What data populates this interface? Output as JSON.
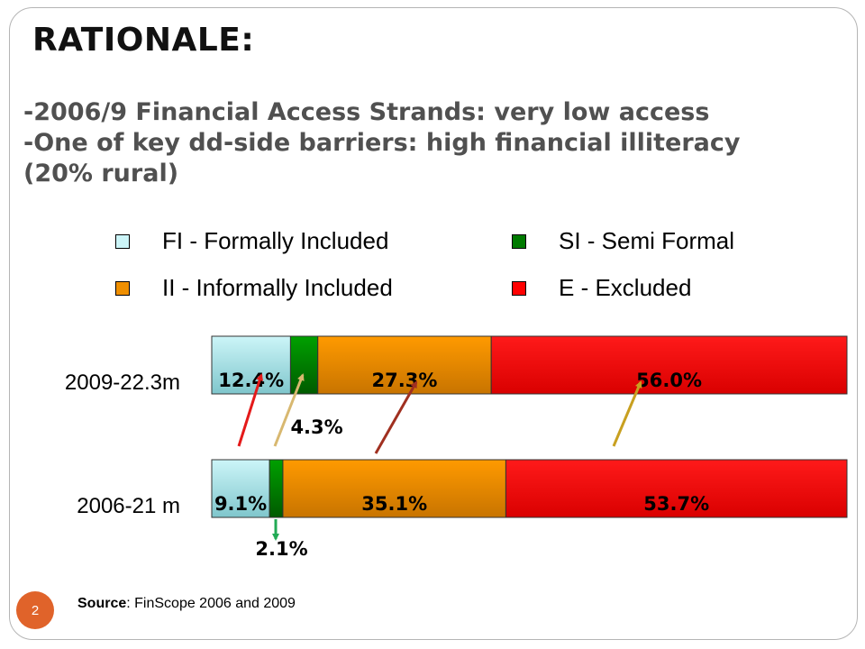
{
  "slide": {
    "title": "RATIONALE:",
    "bullets": [
      "-2006/9 Financial Access Strands: very low access",
      "-One of key dd-side barriers: high financial illiteracy",
      "(20% rural)"
    ],
    "source_label": "Source",
    "source_text": ": FinScope 2006 and 2009",
    "page_number": "2"
  },
  "colors": {
    "fi": "#ccf5f8",
    "si": "#007a00",
    "ii": "#ef8f00",
    "e": "#ff0000",
    "arrow_red": "#e41a1a",
    "arrow_tan": "#d8b870",
    "arrow_brown": "#a03020",
    "arrow_gold": "#c8a020",
    "arrow_green": "#22aa55"
  },
  "chart_data": {
    "type": "bar",
    "orientation": "horizontal",
    "stacked": true,
    "xlim": [
      0,
      100
    ],
    "categories": [
      "2009-22.3m",
      "2006-21 m"
    ],
    "legend": {
      "placement": "top",
      "entries": [
        {
          "key": "fi",
          "label": "FI - Formally Included"
        },
        {
          "key": "si",
          "label": "SI - Semi Formal"
        },
        {
          "key": "ii",
          "label": "II - Informally Included"
        },
        {
          "key": "e",
          "label": "E - Excluded"
        }
      ]
    },
    "series": [
      {
        "key": "fi",
        "values": [
          12.4,
          9.1
        ],
        "labels": [
          "12.4%",
          "9.1%"
        ]
      },
      {
        "key": "si",
        "values": [
          4.3,
          2.1
        ],
        "labels": [
          "4.3%",
          "2.1%"
        ]
      },
      {
        "key": "ii",
        "values": [
          27.3,
          35.1
        ],
        "labels": [
          "27.3%",
          "35.1%"
        ]
      },
      {
        "key": "e",
        "values": [
          56.0,
          53.7
        ],
        "labels": [
          "56.0%",
          "53.7%"
        ]
      }
    ]
  }
}
